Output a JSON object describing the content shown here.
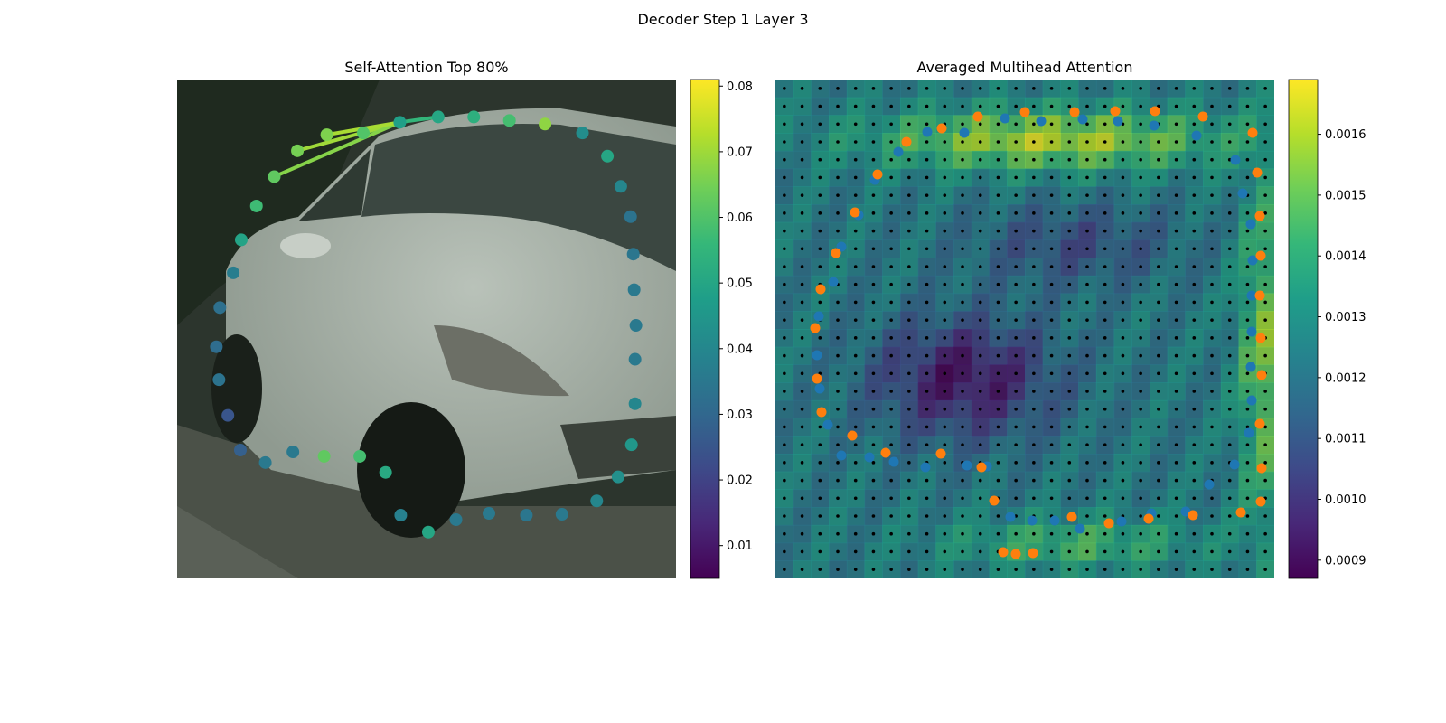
{
  "figure": {
    "suptitle": "Decoder Step 1 Layer 3"
  },
  "colors": {
    "viridis": [
      "#440154",
      "#482878",
      "#3e4a89",
      "#31688e",
      "#26828e",
      "#1f9e89",
      "#35b779",
      "#6ece58",
      "#b5de2b",
      "#fde725"
    ],
    "blue_points": "#1f77b4",
    "orange_points": "#ff7f0e",
    "grid_points": "#000000"
  },
  "chart_data": [
    {
      "type": "scatter",
      "title": "Self-Attention Top 80%",
      "background": "photo of a silver car (grayscale-green tint)",
      "colorbar": {
        "min": 0.005,
        "max": 0.081,
        "ticks": [
          "0.01",
          "0.02",
          "0.03",
          "0.04",
          "0.05",
          "0.06",
          "0.07",
          "0.08"
        ],
        "tick_values": [
          0.01,
          0.02,
          0.03,
          0.04,
          0.05,
          0.06,
          0.07,
          0.08
        ],
        "colormap": "viridis"
      },
      "xlim": [
        0,
        560
      ],
      "ylim": [
        560,
        0
      ],
      "points": [
        [
          250,
          48,
          0.048
        ],
        [
          293,
          42,
          0.05
        ],
        [
          333,
          42,
          0.053
        ],
        [
          373,
          46,
          0.058
        ],
        [
          413,
          50,
          0.068
        ],
        [
          455,
          60,
          0.042
        ],
        [
          483,
          86,
          0.05
        ],
        [
          498,
          120,
          0.04
        ],
        [
          509,
          154,
          0.034
        ],
        [
          512,
          196,
          0.035
        ],
        [
          513,
          236,
          0.036
        ],
        [
          515,
          276,
          0.036
        ],
        [
          514,
          314,
          0.036
        ],
        [
          514,
          364,
          0.04
        ],
        [
          510,
          410,
          0.045
        ],
        [
          495,
          446,
          0.043
        ],
        [
          471,
          473,
          0.04
        ],
        [
          432,
          488,
          0.036
        ],
        [
          392,
          489,
          0.035
        ],
        [
          350,
          487,
          0.036
        ],
        [
          313,
          494,
          0.036
        ],
        [
          282,
          508,
          0.05
        ],
        [
          251,
          489,
          0.038
        ],
        [
          234,
          441,
          0.051
        ],
        [
          205,
          423,
          0.058
        ],
        [
          165,
          423,
          0.062
        ],
        [
          130,
          418,
          0.036
        ],
        [
          99,
          430,
          0.036
        ],
        [
          71,
          416,
          0.028
        ],
        [
          57,
          377,
          0.025
        ],
        [
          47,
          337,
          0.034
        ],
        [
          44,
          300,
          0.032
        ],
        [
          48,
          256,
          0.033
        ],
        [
          63,
          217,
          0.037
        ],
        [
          72,
          180,
          0.049
        ],
        [
          89,
          142,
          0.057
        ],
        [
          109,
          109,
          0.062
        ],
        [
          135,
          80,
          0.065
        ],
        [
          168,
          62,
          0.066
        ],
        [
          209,
          60,
          0.06
        ]
      ],
      "top_links_to": [
        1,
        0,
        39,
        37,
        36,
        38
      ]
    },
    {
      "type": "heatmap",
      "title": "Averaged Multihead Attention",
      "background": "photo of a silver car overlaid with attention heatmap",
      "colorbar": {
        "min": 0.00087,
        "max": 0.00169,
        "ticks": [
          "0.0009",
          "0.0010",
          "0.0011",
          "0.0012",
          "0.0013",
          "0.0014",
          "0.0015",
          "0.0016"
        ],
        "tick_values": [
          0.0009,
          0.001,
          0.0011,
          0.0012,
          0.0013,
          0.0014,
          0.0015,
          0.0016
        ],
        "colormap": "viridis"
      },
      "grid": {
        "rows": 28,
        "cols": 28
      },
      "blue_points": [
        [
          254,
          43
        ],
        [
          294,
          46
        ],
        [
          340,
          44
        ],
        [
          379,
          46
        ],
        [
          419,
          51
        ],
        [
          466,
          62
        ],
        [
          509,
          89
        ],
        [
          517,
          126
        ],
        [
          526,
          160
        ],
        [
          528,
          200
        ],
        [
          527,
          239
        ],
        [
          527,
          279
        ],
        [
          526,
          318
        ],
        [
          527,
          355
        ],
        [
          524,
          391
        ],
        [
          508,
          426
        ],
        [
          480,
          448
        ],
        [
          454,
          478
        ],
        [
          416,
          480
        ],
        [
          383,
          489
        ],
        [
          337,
          497
        ],
        [
          309,
          488
        ],
        [
          284,
          488
        ],
        [
          260,
          484
        ],
        [
          234,
          428
        ],
        [
          212,
          427
        ],
        [
          166,
          429
        ],
        [
          131,
          423
        ],
        [
          104,
          418
        ],
        [
          73,
          416
        ],
        [
          58,
          382
        ],
        [
          49,
          342
        ],
        [
          46,
          305
        ],
        [
          48,
          262
        ],
        [
          64,
          224
        ],
        [
          73,
          185
        ],
        [
          92,
          150
        ],
        [
          110,
          111
        ],
        [
          136,
          80
        ],
        [
          168,
          58
        ],
        [
          209,
          59
        ]
      ],
      "orange_points": [
        [
          224,
          41
        ],
        [
          276,
          36
        ],
        [
          331,
          36
        ],
        [
          376,
          35
        ],
        [
          420,
          35
        ],
        [
          473,
          41
        ],
        [
          528,
          59
        ],
        [
          533,
          103
        ],
        [
          536,
          151
        ],
        [
          537,
          195
        ],
        [
          536,
          239
        ],
        [
          537,
          286
        ],
        [
          538,
          327
        ],
        [
          536,
          381
        ],
        [
          538,
          430
        ],
        [
          537,
          467
        ],
        [
          515,
          479
        ],
        [
          462,
          482
        ],
        [
          413,
          486
        ],
        [
          369,
          491
        ],
        [
          328,
          484
        ],
        [
          285,
          524
        ],
        [
          266,
          525
        ],
        [
          252,
          523
        ],
        [
          242,
          466
        ],
        [
          228,
          429
        ],
        [
          183,
          414
        ],
        [
          122,
          413
        ],
        [
          85,
          394
        ],
        [
          51,
          368
        ],
        [
          46,
          331
        ],
        [
          44,
          275
        ],
        [
          50,
          232
        ],
        [
          67,
          192
        ],
        [
          88,
          147
        ],
        [
          113,
          105
        ],
        [
          145,
          69
        ],
        [
          184,
          54
        ]
      ]
    }
  ]
}
